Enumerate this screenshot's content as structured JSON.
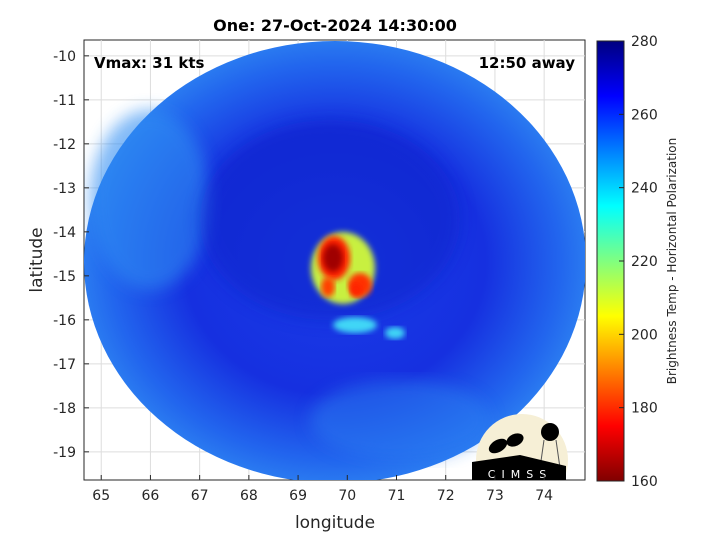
{
  "title": "One: 27-Oct-2024 14:30:00",
  "vmax_label": "Vmax: 31 kts",
  "away_label": "12:50 away",
  "xlabel": "longitude",
  "ylabel": "latitude",
  "colorbar_label": "Brightness Temp - Horizontal Polarization",
  "logo_text": "CIMSS",
  "chart_data": {
    "type": "heatmap",
    "xlim": [
      64.65,
      74.83
    ],
    "ylim": [
      -19.64,
      -9.64
    ],
    "xticks": [
      65,
      66,
      67,
      68,
      69,
      70,
      71,
      72,
      73,
      74
    ],
    "yticks": [
      -10,
      -11,
      -12,
      -13,
      -14,
      -15,
      -16,
      -17,
      -18,
      -19
    ],
    "grid": true,
    "colormap": "jet",
    "clim": [
      160,
      280
    ],
    "colorbar_ticks": [
      280,
      260,
      240,
      220,
      200,
      180,
      160
    ],
    "features": [
      {
        "lon": 69.6,
        "lat": -14.6,
        "value": 165
      },
      {
        "lon": 70.2,
        "lat": -15.2,
        "value": 185
      },
      {
        "lon": 69.3,
        "lat": -15.2,
        "value": 190
      },
      {
        "lon": 69.8,
        "lat": -15.2,
        "value": 195
      },
      {
        "lon": 70.2,
        "lat": -16.1,
        "value": 235
      }
    ]
  }
}
